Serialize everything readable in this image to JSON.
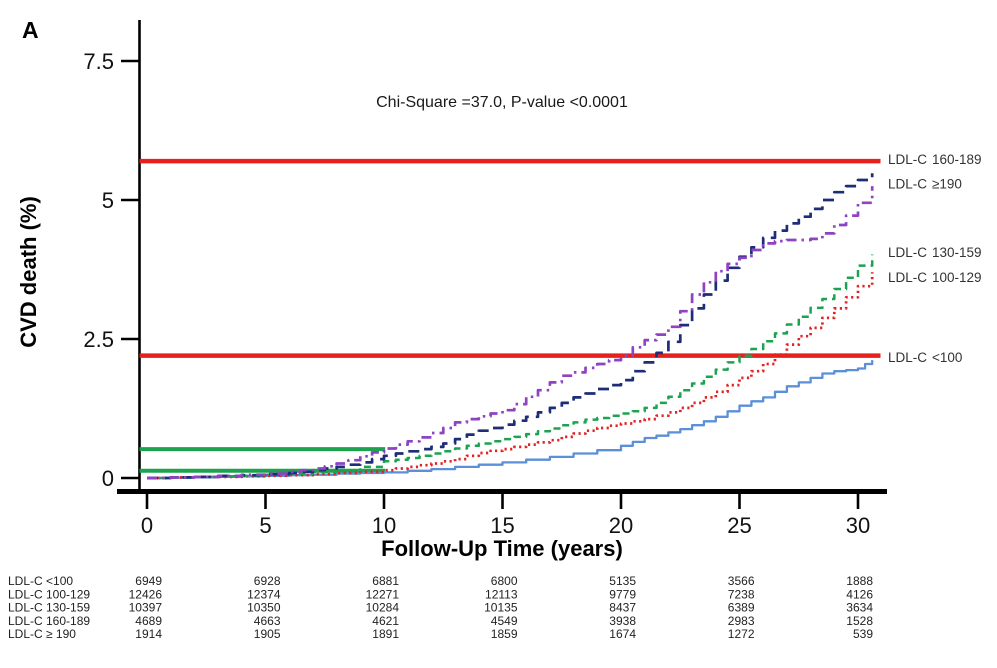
{
  "panel_label": "A",
  "annotation": "Chi-Square =37.0, P-value <0.0001",
  "colors": {
    "axis": "#000000",
    "reference_red": "#e8201c",
    "reference_green": "#1da34f",
    "ldl_lt100": "#5b8fd8",
    "ldl_100_129": "#e02423",
    "ldl_130_159": "#1da34f",
    "ldl_160_189": "#1e2d78",
    "ldl_ge190": "#8f42c2"
  },
  "chart_data": {
    "type": "line",
    "title": "",
    "xlabel": "Follow-Up Time (years)",
    "ylabel": "CVD death (%)",
    "xlim": [
      0,
      31
    ],
    "ylim": [
      0,
      7.9
    ],
    "grid": false,
    "xticks": [
      {
        "value": 0,
        "label": "0"
      },
      {
        "value": 5,
        "label": "5"
      },
      {
        "value": 10,
        "label": "10"
      },
      {
        "value": 15,
        "label": "15"
      },
      {
        "value": 20,
        "label": "20"
      },
      {
        "value": 25,
        "label": "25"
      },
      {
        "value": 30,
        "label": "30"
      }
    ],
    "yticks": [
      {
        "value": 0,
        "label": "0"
      },
      {
        "value": 2.5,
        "label": "2.5"
      },
      {
        "value": 5,
        "label": "5"
      },
      {
        "value": 7.5,
        "label": "7.5"
      }
    ],
    "reference_lines": [
      {
        "id": "ref-red-upper",
        "pct": 5.7,
        "color": "#e8201c",
        "from_axis": true,
        "to_year": 30.95,
        "width": 4.5
      },
      {
        "id": "ref-red-lower",
        "pct": 2.2,
        "color": "#e8201c",
        "from_axis": true,
        "to_year": 30.95,
        "width": 4.5
      },
      {
        "id": "ref-green-upper",
        "pct": 0.52,
        "color": "#1da34f",
        "from_axis": true,
        "to_year": 10.05,
        "width": 4
      },
      {
        "id": "ref-green-lower",
        "pct": 0.13,
        "color": "#1da34f",
        "from_axis": true,
        "to_year": 10.05,
        "width": 4
      }
    ],
    "series": [
      {
        "id": "ldl-lt-100",
        "name": "LDL-C <100",
        "label_col1": "LDL-C",
        "label_col2": "<100",
        "label_at_pct": 2.16,
        "color": "#5b8fd8",
        "line_style": "solid",
        "width": 2.3,
        "points": [
          [
            0,
            0
          ],
          [
            1,
            0.005
          ],
          [
            2,
            0.01
          ],
          [
            3,
            0.02
          ],
          [
            4,
            0.03
          ],
          [
            5,
            0.04
          ],
          [
            6,
            0.05
          ],
          [
            7,
            0.06
          ],
          [
            8,
            0.08
          ],
          [
            9,
            0.09
          ],
          [
            10,
            0.1
          ],
          [
            11,
            0.13
          ],
          [
            12,
            0.16
          ],
          [
            13,
            0.2
          ],
          [
            14,
            0.24
          ],
          [
            15,
            0.28
          ],
          [
            16,
            0.33
          ],
          [
            17,
            0.38
          ],
          [
            18,
            0.44
          ],
          [
            19,
            0.5
          ],
          [
            20,
            0.58
          ],
          [
            20.5,
            0.65
          ],
          [
            21,
            0.72
          ],
          [
            21.5,
            0.76
          ],
          [
            22,
            0.82
          ],
          [
            22.5,
            0.88
          ],
          [
            23,
            0.95
          ],
          [
            23.5,
            1.02
          ],
          [
            24,
            1.1
          ],
          [
            24.5,
            1.2
          ],
          [
            25,
            1.3
          ],
          [
            25.5,
            1.38
          ],
          [
            26,
            1.45
          ],
          [
            26.5,
            1.55
          ],
          [
            27,
            1.65
          ],
          [
            27.5,
            1.72
          ],
          [
            28,
            1.8
          ],
          [
            28.5,
            1.88
          ],
          [
            29,
            1.92
          ],
          [
            29.5,
            1.94
          ],
          [
            30,
            1.97
          ],
          [
            30.3,
            2.05
          ],
          [
            30.6,
            2.12
          ]
        ]
      },
      {
        "id": "ldl-100-129",
        "name": "LDL-C 100-129",
        "label_col1": "LDL-C",
        "label_col2": "100-129",
        "label_at_pct": 3.6,
        "color": "#e02423",
        "line_style": "dot",
        "width": 2.7,
        "points": [
          [
            0,
            0
          ],
          [
            1,
            0.01
          ],
          [
            2,
            0.02
          ],
          [
            3,
            0.02
          ],
          [
            4,
            0.03
          ],
          [
            5,
            0.04
          ],
          [
            6,
            0.05
          ],
          [
            7,
            0.07
          ],
          [
            8,
            0.09
          ],
          [
            9,
            0.11
          ],
          [
            10,
            0.14
          ],
          [
            10.5,
            0.17
          ],
          [
            11,
            0.2
          ],
          [
            11.5,
            0.23
          ],
          [
            12,
            0.26
          ],
          [
            12.5,
            0.3
          ],
          [
            13,
            0.34
          ],
          [
            13.5,
            0.4
          ],
          [
            14,
            0.45
          ],
          [
            14.5,
            0.49
          ],
          [
            15,
            0.52
          ],
          [
            15.5,
            0.56
          ],
          [
            16,
            0.6
          ],
          [
            16.5,
            0.64
          ],
          [
            17,
            0.68
          ],
          [
            17.5,
            0.74
          ],
          [
            18,
            0.8
          ],
          [
            18.5,
            0.85
          ],
          [
            19,
            0.9
          ],
          [
            19.5,
            0.94
          ],
          [
            20,
            0.98
          ],
          [
            20.5,
            1.02
          ],
          [
            21,
            1.06
          ],
          [
            21.5,
            1.12
          ],
          [
            22,
            1.18
          ],
          [
            22.5,
            1.26
          ],
          [
            23,
            1.35
          ],
          [
            23.5,
            1.45
          ],
          [
            24,
            1.55
          ],
          [
            24.5,
            1.67
          ],
          [
            25,
            1.8
          ],
          [
            25.5,
            1.92
          ],
          [
            26,
            2.05
          ],
          [
            26.5,
            2.22
          ],
          [
            27,
            2.4
          ],
          [
            27.5,
            2.55
          ],
          [
            28,
            2.7
          ],
          [
            28.5,
            2.88
          ],
          [
            29,
            3.05
          ],
          [
            29.5,
            3.25
          ],
          [
            30,
            3.45
          ],
          [
            30.6,
            3.7
          ]
        ]
      },
      {
        "id": "ldl-130-159",
        "name": "LDL-C 130-159",
        "label_col1": "LDL-C",
        "label_col2": "130-159",
        "label_at_pct": 4.05,
        "color": "#1da34f",
        "line_style": "shortdash",
        "width": 2.5,
        "points": [
          [
            0,
            0
          ],
          [
            1,
            0.01
          ],
          [
            2,
            0.02
          ],
          [
            3,
            0.03
          ],
          [
            4,
            0.04
          ],
          [
            5,
            0.06
          ],
          [
            6,
            0.08
          ],
          [
            7,
            0.11
          ],
          [
            8,
            0.14
          ],
          [
            9,
            0.2
          ],
          [
            10,
            0.3
          ],
          [
            10.5,
            0.33
          ],
          [
            11,
            0.36
          ],
          [
            11.5,
            0.4
          ],
          [
            12,
            0.44
          ],
          [
            12.5,
            0.48
          ],
          [
            13,
            0.53
          ],
          [
            13.5,
            0.58
          ],
          [
            14,
            0.62
          ],
          [
            14.5,
            0.66
          ],
          [
            15,
            0.7
          ],
          [
            15.5,
            0.74
          ],
          [
            16,
            0.79
          ],
          [
            16.5,
            0.84
          ],
          [
            17,
            0.89
          ],
          [
            17.5,
            0.95
          ],
          [
            18,
            1.0
          ],
          [
            18.5,
            1.05
          ],
          [
            19,
            1.08
          ],
          [
            19.5,
            1.12
          ],
          [
            20,
            1.16
          ],
          [
            20.5,
            1.2
          ],
          [
            21,
            1.26
          ],
          [
            21.5,
            1.35
          ],
          [
            22,
            1.46
          ],
          [
            22.5,
            1.58
          ],
          [
            23,
            1.7
          ],
          [
            23.5,
            1.82
          ],
          [
            24,
            1.95
          ],
          [
            24.5,
            2.08
          ],
          [
            25,
            2.2
          ],
          [
            25.5,
            2.32
          ],
          [
            26,
            2.46
          ],
          [
            26.5,
            2.6
          ],
          [
            27,
            2.76
          ],
          [
            27.5,
            2.9
          ],
          [
            28,
            3.06
          ],
          [
            28.5,
            3.22
          ],
          [
            29,
            3.4
          ],
          [
            29.5,
            3.6
          ],
          [
            30,
            3.82
          ],
          [
            30.6,
            4.02
          ]
        ]
      },
      {
        "id": "ldl-160-189",
        "name": "LDL-C 160-189",
        "label_col1": "LDL-C",
        "label_col2": "160-189",
        "label_at_pct": 5.72,
        "color": "#1e2d78",
        "line_style": "dash",
        "width": 2.7,
        "points": [
          [
            0,
            0
          ],
          [
            1,
            0.01
          ],
          [
            2,
            0.02
          ],
          [
            3,
            0.04
          ],
          [
            4,
            0.05
          ],
          [
            5,
            0.07
          ],
          [
            6,
            0.09
          ],
          [
            6.5,
            0.11
          ],
          [
            7,
            0.14
          ],
          [
            7.5,
            0.17
          ],
          [
            8,
            0.2
          ],
          [
            8.5,
            0.24
          ],
          [
            9,
            0.28
          ],
          [
            9.5,
            0.34
          ],
          [
            10,
            0.4
          ],
          [
            10.5,
            0.44
          ],
          [
            11,
            0.48
          ],
          [
            11.5,
            0.52
          ],
          [
            12,
            0.56
          ],
          [
            12.5,
            0.62
          ],
          [
            13,
            0.7
          ],
          [
            13.5,
            0.78
          ],
          [
            14,
            0.85
          ],
          [
            14.5,
            0.9
          ],
          [
            15,
            0.96
          ],
          [
            15.5,
            1.03
          ],
          [
            16,
            1.1
          ],
          [
            16.5,
            1.18
          ],
          [
            17,
            1.26
          ],
          [
            17.5,
            1.35
          ],
          [
            18,
            1.45
          ],
          [
            18.5,
            1.52
          ],
          [
            19,
            1.6
          ],
          [
            19.5,
            1.67
          ],
          [
            20,
            1.76
          ],
          [
            20.5,
            1.92
          ],
          [
            21,
            2.08
          ],
          [
            21.5,
            2.25
          ],
          [
            22,
            2.45
          ],
          [
            22.5,
            2.75
          ],
          [
            23,
            3.05
          ],
          [
            23.5,
            3.3
          ],
          [
            24,
            3.55
          ],
          [
            24.5,
            3.78
          ],
          [
            25,
            3.98
          ],
          [
            25.5,
            4.15
          ],
          [
            26,
            4.32
          ],
          [
            26.5,
            4.45
          ],
          [
            27,
            4.58
          ],
          [
            27.5,
            4.7
          ],
          [
            28,
            4.84
          ],
          [
            28.5,
            5.0
          ],
          [
            29,
            5.14
          ],
          [
            29.5,
            5.25
          ],
          [
            30,
            5.36
          ],
          [
            30.6,
            5.48
          ]
        ]
      },
      {
        "id": "ldl-ge-190",
        "name": "LDL-C ≥190",
        "label_col1": "LDL-C",
        "label_col2": "≥190",
        "label_at_pct": 5.28,
        "color": "#8f42c2",
        "line_style": "dashdot",
        "width": 2.7,
        "points": [
          [
            0,
            0
          ],
          [
            1,
            0.01
          ],
          [
            2,
            0.02
          ],
          [
            3,
            0.04
          ],
          [
            4,
            0.06
          ],
          [
            5,
            0.08
          ],
          [
            6,
            0.11
          ],
          [
            6.5,
            0.14
          ],
          [
            7,
            0.17
          ],
          [
            7.5,
            0.21
          ],
          [
            8,
            0.26
          ],
          [
            8.5,
            0.32
          ],
          [
            9,
            0.39
          ],
          [
            9.5,
            0.46
          ],
          [
            10,
            0.53
          ],
          [
            10.5,
            0.6
          ],
          [
            11,
            0.66
          ],
          [
            11.5,
            0.73
          ],
          [
            12,
            0.81
          ],
          [
            12.5,
            0.9
          ],
          [
            13,
            1.0
          ],
          [
            13.5,
            1.06
          ],
          [
            14,
            1.11
          ],
          [
            14.5,
            1.16
          ],
          [
            15,
            1.22
          ],
          [
            15.5,
            1.33
          ],
          [
            16,
            1.46
          ],
          [
            16.5,
            1.58
          ],
          [
            17,
            1.72
          ],
          [
            17.5,
            1.84
          ],
          [
            18,
            1.9
          ],
          [
            18.5,
            1.98
          ],
          [
            19,
            2.05
          ],
          [
            19.5,
            2.12
          ],
          [
            20,
            2.2
          ],
          [
            20.5,
            2.35
          ],
          [
            21,
            2.48
          ],
          [
            21.5,
            2.58
          ],
          [
            22,
            2.72
          ],
          [
            22.5,
            3.0
          ],
          [
            23,
            3.3
          ],
          [
            23.5,
            3.52
          ],
          [
            24,
            3.72
          ],
          [
            24.5,
            3.85
          ],
          [
            25,
            3.96
          ],
          [
            25.5,
            4.1
          ],
          [
            26,
            4.22
          ],
          [
            26.5,
            4.26
          ],
          [
            27,
            4.28
          ],
          [
            27.5,
            4.28
          ],
          [
            28,
            4.3
          ],
          [
            28.5,
            4.4
          ],
          [
            29,
            4.55
          ],
          [
            29.5,
            4.72
          ],
          [
            30,
            4.95
          ],
          [
            30.6,
            5.25
          ]
        ]
      }
    ]
  },
  "risk_table": {
    "time_points_years": [
      0,
      5,
      10,
      15,
      20,
      25,
      30
    ],
    "rows": [
      {
        "label": "LDL-C <100",
        "counts": [
          6949,
          6928,
          6881,
          6800,
          5135,
          3566,
          1888
        ]
      },
      {
        "label": "LDL-C 100-129",
        "counts": [
          12426,
          12374,
          12271,
          12113,
          9779,
          7238,
          4126
        ]
      },
      {
        "label": "LDL-C 130-159",
        "counts": [
          10397,
          10350,
          10284,
          10135,
          8437,
          6389,
          3634
        ]
      },
      {
        "label": "LDL-C 160-189",
        "counts": [
          4689,
          4663,
          4621,
          4549,
          3938,
          2983,
          1528
        ]
      },
      {
        "label": "LDL-C ≥ 190",
        "counts": [
          1914,
          1905,
          1891,
          1859,
          1674,
          1272,
          539
        ]
      }
    ]
  }
}
